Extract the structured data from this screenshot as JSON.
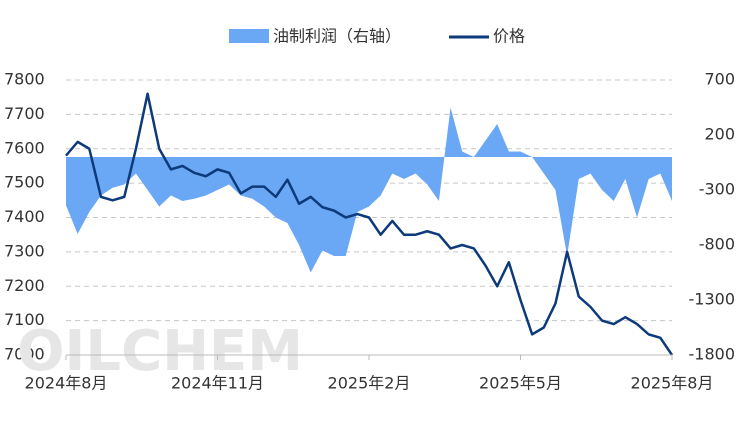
{
  "chart_data": {
    "type": "line_area_dual",
    "watermark": "OILCHEM",
    "categories": [
      "2024年8月",
      null,
      null,
      null,
      null,
      null,
      null,
      null,
      null,
      null,
      null,
      null,
      null,
      "2024年11月",
      null,
      null,
      null,
      null,
      null,
      null,
      null,
      null,
      null,
      null,
      null,
      null,
      "2025年2月",
      null,
      null,
      null,
      null,
      null,
      null,
      null,
      null,
      null,
      null,
      null,
      null,
      "2025年5月",
      null,
      null,
      null,
      null,
      null,
      null,
      null,
      null,
      null,
      null,
      null,
      null,
      "2025年8月"
    ],
    "series": [
      {
        "name": "油制利润（右轴）",
        "type": "area",
        "axis": "y2",
        "color": "#6aa8f5",
        "values": [
          -440,
          -700,
          -500,
          -350,
          -280,
          -250,
          -150,
          -300,
          -450,
          -350,
          -400,
          -380,
          -350,
          -300,
          -250,
          -350,
          -380,
          -450,
          -550,
          -600,
          -800,
          -1050,
          -850,
          -900,
          -900,
          -500,
          -450,
          -350,
          -150,
          -200,
          -150,
          -250,
          -400,
          450,
          50,
          0,
          150,
          300,
          50,
          50,
          0,
          -150,
          -300,
          -900,
          -200,
          -150,
          -300,
          -400,
          -200,
          -550,
          -200,
          -150,
          -400
        ]
      },
      {
        "name": "价格",
        "type": "line",
        "color": "#0d3a7a",
        "values": [
          7580,
          7620,
          7600,
          7460,
          7450,
          7460,
          7600,
          7760,
          7600,
          7540,
          7550,
          7530,
          7520,
          7540,
          7530,
          7470,
          7490,
          7490,
          7460,
          7510,
          7440,
          7460,
          7430,
          7420,
          7400,
          7410,
          7400,
          7350,
          7390,
          7350,
          7350,
          7360,
          7350,
          7310,
          7320,
          7310,
          7260,
          7200,
          7270,
          7160,
          7060,
          7080,
          7150,
          7300,
          7170,
          7140,
          7100,
          7090,
          7110,
          7090,
          7060,
          7050,
          7000
        ]
      }
    ],
    "ylim": [
      7000,
      7800
    ],
    "yticks": [
      7000,
      7100,
      7200,
      7300,
      7400,
      7500,
      7600,
      7700,
      7800
    ],
    "y2lim": [
      -1800,
      700
    ],
    "y2ticks": [
      -1800,
      -1300,
      -800,
      -300,
      200,
      700
    ],
    "grid": true
  }
}
